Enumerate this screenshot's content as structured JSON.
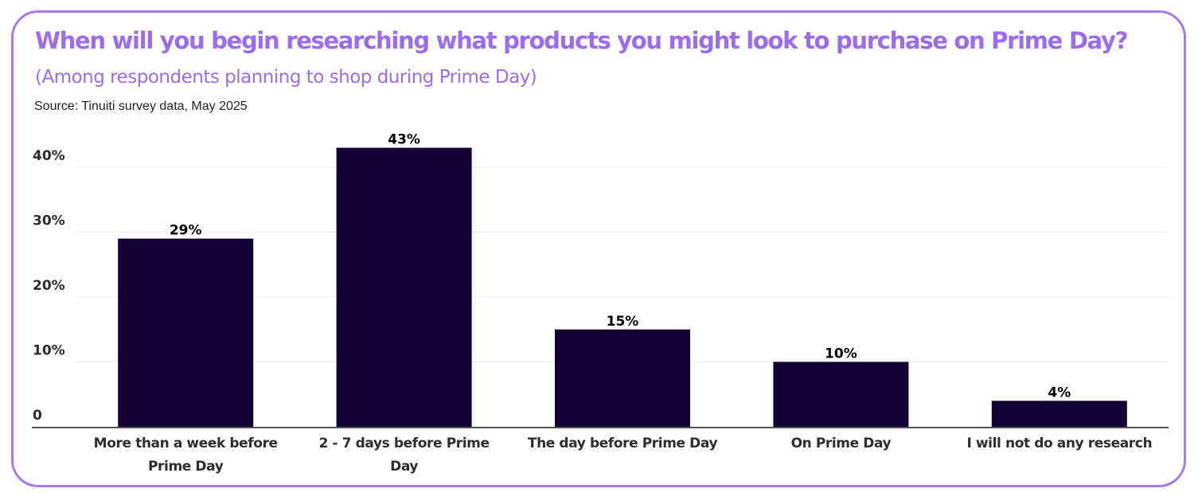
{
  "title": "When will you begin researching what products you might look to purchase on Prime Day?",
  "subtitle": "(Among respondents planning to shop during Prime Day)",
  "source": "Source: Tinuiti survey data, May 2025",
  "colors": {
    "bar": "#140033",
    "accent": "#9b6bf2",
    "border": "#a47bf0",
    "grid": "#ececec",
    "axis": "#555555"
  },
  "chart_data": {
    "type": "bar",
    "title": "When will you begin researching what products you might look to purchase on Prime Day?",
    "subtitle": "(Among respondents planning to shop during Prime Day)",
    "xlabel": "",
    "ylabel": "",
    "categories": [
      [
        "More than a week before",
        "Prime Day"
      ],
      [
        "2 - 7 days before Prime",
        "Day"
      ],
      [
        "The day before Prime Day"
      ],
      [
        "On Prime Day"
      ],
      [
        "I will not do any research"
      ]
    ],
    "values": [
      29,
      43,
      15,
      10,
      4
    ],
    "value_labels": [
      "29%",
      "43%",
      "15%",
      "10%",
      "4%"
    ],
    "yticks": [
      0,
      10,
      20,
      30,
      40
    ],
    "ytick_labels": [
      "0",
      "10%",
      "20%",
      "30%",
      "40%"
    ],
    "ylim": [
      0,
      43
    ],
    "grid": true,
    "legend": "none"
  }
}
